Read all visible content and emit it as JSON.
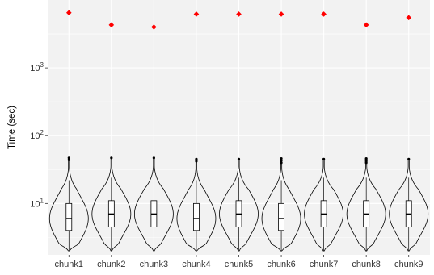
{
  "chart_data": {
    "type": "violin",
    "ylabel": "Time (sec)",
    "xlabel": "",
    "yscale": "log10",
    "ylim": [
      1.75,
      10000
    ],
    "y_ticks": [
      {
        "value": 10,
        "base": "10",
        "exp": "1"
      },
      {
        "value": 100,
        "base": "10",
        "exp": "2"
      },
      {
        "value": 1000,
        "base": "10",
        "exp": "3"
      }
    ],
    "grid": true,
    "categories": [
      "chunk1",
      "chunk2",
      "chunk3",
      "chunk4",
      "chunk5",
      "chunk6",
      "chunk7",
      "chunk8",
      "chunk9"
    ],
    "series": [
      {
        "distribution": [
          {
            "category": "chunk1",
            "min": 2,
            "q1": 4,
            "median": 6,
            "q3": 10,
            "whisker_high": 22,
            "outliers": [
              44,
              47
            ],
            "max": 47
          },
          {
            "category": "chunk2",
            "min": 2,
            "q1": 4.5,
            "median": 7,
            "q3": 11,
            "whisker_high": 24,
            "outliers": [
              47
            ],
            "max": 47
          },
          {
            "category": "chunk3",
            "min": 2,
            "q1": 4.5,
            "median": 7,
            "q3": 11,
            "whisker_high": 24,
            "outliers": [
              47
            ],
            "max": 47
          },
          {
            "category": "chunk4",
            "min": 2,
            "q1": 4,
            "median": 6,
            "q3": 10,
            "whisker_high": 22,
            "outliers": [
              42,
              45
            ],
            "max": 45
          },
          {
            "category": "chunk5",
            "min": 2,
            "q1": 4.5,
            "median": 7,
            "q3": 11,
            "whisker_high": 24,
            "outliers": [
              45
            ],
            "max": 45
          },
          {
            "category": "chunk6",
            "min": 2,
            "q1": 4,
            "median": 6,
            "q3": 10,
            "whisker_high": 22,
            "outliers": [
              40,
              43,
              46
            ],
            "max": 46
          },
          {
            "category": "chunk7",
            "min": 2,
            "q1": 4.5,
            "median": 7,
            "q3": 11,
            "whisker_high": 24,
            "outliers": [
              45
            ],
            "max": 45
          },
          {
            "category": "chunk8",
            "min": 2,
            "q1": 4.5,
            "median": 7,
            "q3": 11,
            "whisker_high": 24,
            "outliers": [
              40,
              42,
              44,
              46
            ],
            "max": 46
          },
          {
            "category": "chunk9",
            "min": 2,
            "q1": 4.5,
            "median": 7,
            "q3": 11,
            "whisker_high": 24,
            "outliers": [
              45
            ],
            "max": 45
          }
        ]
      },
      {
        "color": "#ff0000",
        "values": [
          6500,
          4300,
          4000,
          6200,
          6200,
          6200,
          6200,
          4300,
          5500
        ]
      }
    ],
    "colors": {
      "panel_background": "#f2f2f2",
      "grid_major": "#ffffff",
      "violin_stroke": "#000000",
      "box_fill": "#ffffff",
      "marker": "#ff0000"
    }
  }
}
